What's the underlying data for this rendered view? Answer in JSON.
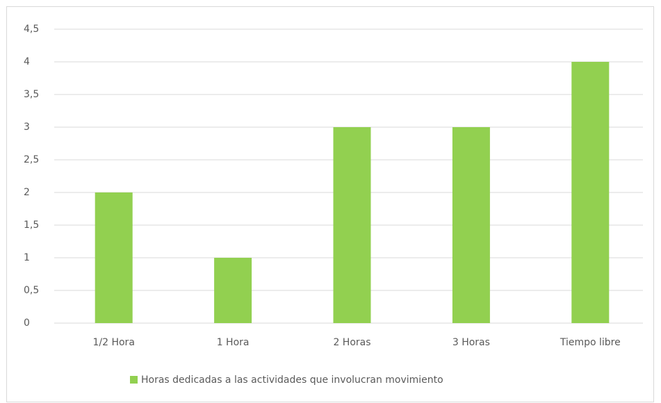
{
  "chart_data": {
    "type": "bar",
    "categories": [
      "1/2 Hora",
      "1 Hora",
      "2 Horas",
      "3 Horas",
      "Tiempo libre"
    ],
    "series": [
      {
        "name": "Horas dedicadas a las actividades que involucran movimiento",
        "color": "#92d050",
        "values": [
          2,
          1,
          3,
          3,
          4
        ]
      }
    ],
    "ylim": [
      0,
      4.5
    ],
    "yticks": [
      0,
      {
        "value": 0.5,
        "label": "0,5"
      },
      1,
      {
        "value": 1.5,
        "label": "1,5"
      },
      2,
      {
        "value": 2.5,
        "label": "2,5"
      },
      3,
      {
        "value": 3.5,
        "label": "3,5"
      },
      4,
      {
        "value": 4.5,
        "label": "4,5"
      }
    ],
    "grid": true,
    "legend": "bottom"
  }
}
